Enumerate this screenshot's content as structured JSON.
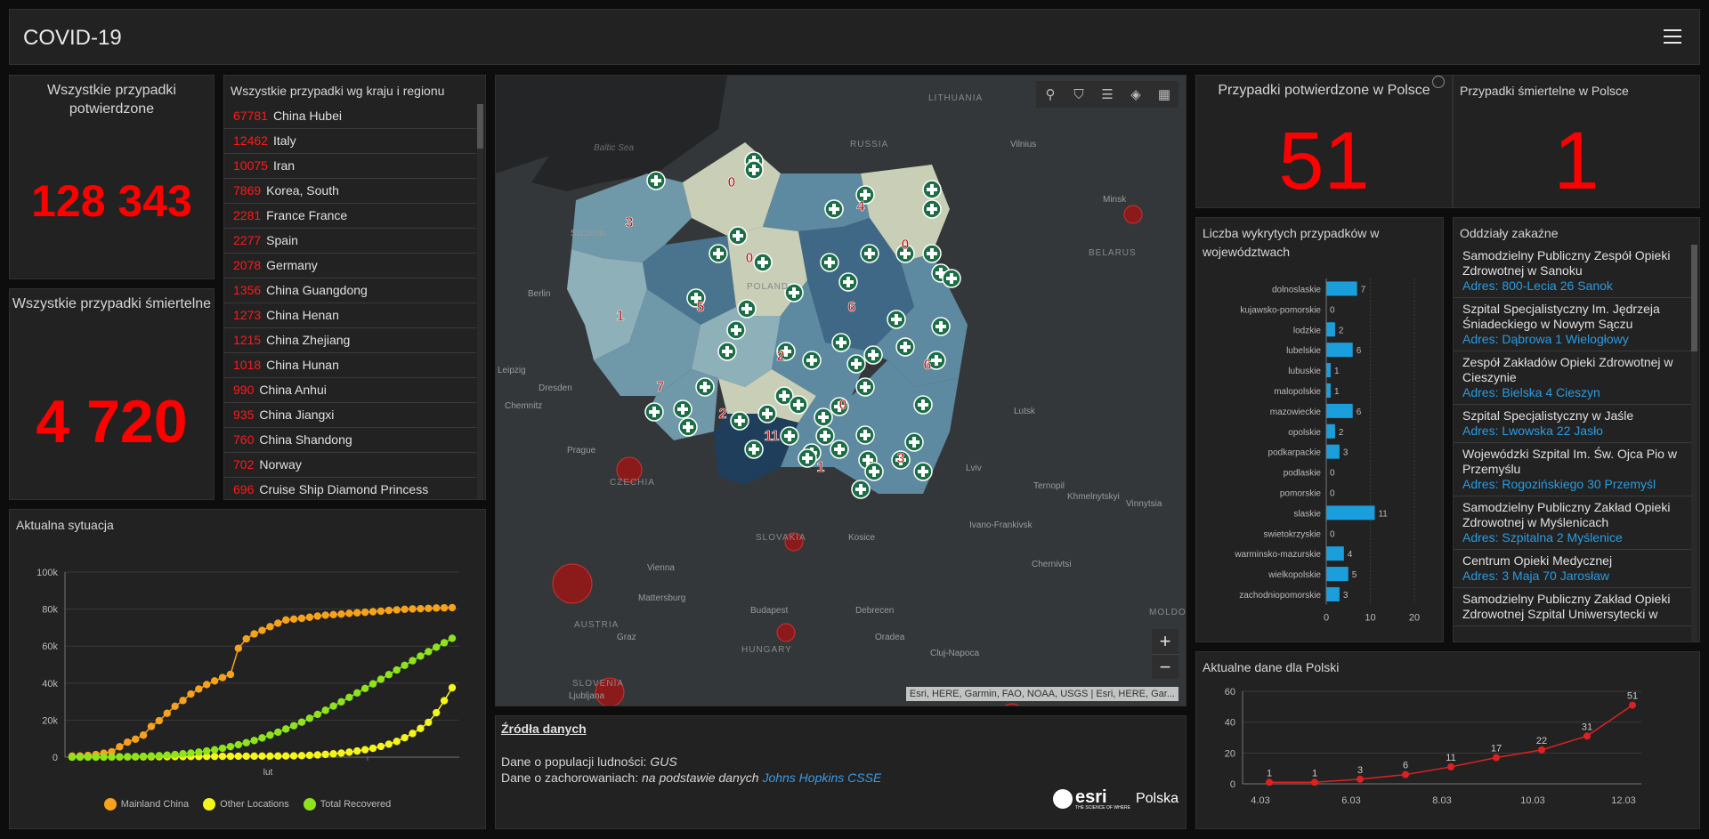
{
  "header": {
    "title": "COVID-19"
  },
  "confirmed": {
    "title": "Wszystkie przypadki potwierdzone",
    "value": "128 343"
  },
  "deaths": {
    "title": "Wszystkie przypadki śmiertelne",
    "value": "4 720"
  },
  "country_list": {
    "title": "Wszystkie przypadki wg kraju i regionu",
    "rows": [
      {
        "n": "67781",
        "c": "China Hubei"
      },
      {
        "n": "12462",
        "c": "Italy"
      },
      {
        "n": "10075",
        "c": "Iran"
      },
      {
        "n": "7869",
        "c": "Korea, South"
      },
      {
        "n": "2281",
        "c": "France France"
      },
      {
        "n": "2277",
        "c": "Spain"
      },
      {
        "n": "2078",
        "c": "Germany"
      },
      {
        "n": "1356",
        "c": "China Guangdong"
      },
      {
        "n": "1273",
        "c": "China Henan"
      },
      {
        "n": "1215",
        "c": "China Zhejiang"
      },
      {
        "n": "1018",
        "c": "China Hunan"
      },
      {
        "n": "990",
        "c": "China Anhui"
      },
      {
        "n": "935",
        "c": "China Jiangxi"
      },
      {
        "n": "760",
        "c": "China Shandong"
      },
      {
        "n": "702",
        "c": "Norway"
      },
      {
        "n": "696",
        "c": "Cruise Ship Diamond Princess"
      }
    ]
  },
  "map": {
    "labels": {
      "lithuania": "LITHUANIA",
      "russia": "RUSSIA",
      "vilnius": "Vilnius",
      "minsk": "Minsk",
      "belarus": "BELARUS",
      "baltic": "Baltic Sea",
      "berlin": "Berlin",
      "dresden": "Dresden",
      "chemnitz": "Chemnitz",
      "prague": "Prague",
      "czechia": "CZECHIA",
      "poland": "POLAND",
      "lutsk": "Lutsk",
      "lviv": "Lviv",
      "ternopil": "Ternopil",
      "khmelnytskyi": "Khmelnytskyi",
      "vinnytsia": "Vinnytsia",
      "ivano": "Ivano-Frankivsk",
      "chernivtsi": "Chernivtsi",
      "slovakia": "SLOVAKIA",
      "kosice": "Kosice",
      "vienna": "Vienna",
      "mattersburg": "Mattersburg",
      "austria": "AUSTRIA",
      "graz": "Graz",
      "budapest": "Budapest",
      "debrecen": "Debrecen",
      "oradea": "Oradea",
      "hungary": "HUNGARY",
      "cluj": "Cluj-Napoca",
      "moldova": "MOLDOVA",
      "slovenia": "SLOVENIA",
      "ljubljana": "Ljubljana",
      "leipzig": "Leipzig",
      "szczecin": "Szczecin"
    },
    "region_counts": [
      "3",
      "0",
      "4",
      "0",
      "0",
      "1",
      "5",
      "6",
      "2",
      "6",
      "7",
      "2",
      "0",
      "11",
      "1",
      "3"
    ],
    "attribution": "Esri, HERE, Garmin, FAO, NOAA, USGS | Esri, HERE, Gar...",
    "zoom_in": "+",
    "zoom_out": "−"
  },
  "sources": {
    "title": "Źródła danych",
    "pop_label": "Dane o populacji ludności: ",
    "pop_value": "GUS",
    "cases_label": "Dane o zachorowaniach: ",
    "cases_prefix": "na podstawie danych ",
    "cases_link": "Johns Hopkins CSSE",
    "logo_word": "esri",
    "logo_sub": "THE SCIENCE OF WHERE",
    "logo_pl": "Polska"
  },
  "pl_confirmed": {
    "title": "Przypadki potwierdzone w Polsce",
    "value": "51"
  },
  "pl_deaths": {
    "title": "Przypadki śmiertelne w Polsce",
    "value": "1"
  },
  "voivodeship": {
    "title": "Liczba wykrytych przypadków w województwach",
    "chart_data": {
      "type": "bar",
      "orientation": "horizontal",
      "categories": [
        "dolnoslaskie",
        "kujawsko-pomorskie",
        "lodzkie",
        "lubelskie",
        "lubuskie",
        "malopolskie",
        "mazowieckie",
        "opolskie",
        "podkarpackie",
        "podlaskie",
        "pomorskie",
        "slaskie",
        "swietokrzyskie",
        "warminsko-mazurskie",
        "wielkopolskie",
        "zachodniopomorskie"
      ],
      "values": [
        7,
        0,
        2,
        6,
        1,
        1,
        6,
        2,
        3,
        0,
        0,
        11,
        0,
        4,
        5,
        3
      ],
      "xlim": [
        0,
        20
      ],
      "xticks": [
        "0",
        "10",
        "20"
      ],
      "color": "#1a9fdc"
    }
  },
  "hospitals": {
    "title": "Oddziały zakaźne",
    "items": [
      {
        "name": "Samodzielny Publiczny Zespół Opieki Zdrowotnej w Sanoku",
        "addr": "Adres: 800-Lecia 26 Sanok"
      },
      {
        "name": "Szpital Specjalistyczny Im. Jędrzeja Śniadeckiego w Nowym Sączu",
        "addr": "Adres: Dąbrowa 1 Wielogłowy"
      },
      {
        "name": "Zespół Zakładów Opieki Zdrowotnej w Cieszynie",
        "addr": "Adres: Bielska 4 Cieszyn"
      },
      {
        "name": "Szpital Specjalistyczny w Jaśle",
        "addr": "Adres: Lwowska 22 Jasło"
      },
      {
        "name": "Wojewódzki Szpital Im. Św. Ojca Pio w Przemyślu",
        "addr": "Adres: Rogozińskiego 30 Przemyśl"
      },
      {
        "name": "Samodzielny Publiczny Zakład Opieki Zdrowotnej w Myślenicach",
        "addr": "Adres: Szpitalna 2 Myślenice"
      },
      {
        "name": "Centrum Opieki Medycznej",
        "addr": "Adres: 3 Maja 70 Jarosław"
      },
      {
        "name": "Samodzielny Publiczny Zakład Opieki Zdrowotnej Szpital Uniwersytecki w",
        "addr": ""
      }
    ]
  },
  "situation": {
    "title": "Aktualna sytuacja",
    "chart_data": {
      "type": "line",
      "yticks": [
        "0",
        "20k",
        "40k",
        "60k",
        "80k",
        "100k"
      ],
      "ylim": [
        0,
        100000
      ],
      "xtick_label": "lut",
      "series": [
        {
          "name": "Mainland China",
          "color": "#f7a21b",
          "values": [
            550,
            640,
            920,
            1400,
            2100,
            2900,
            5600,
            8100,
            9700,
            11900,
            16600,
            19700,
            23700,
            27500,
            30600,
            34100,
            36800,
            39200,
            41200,
            43000,
            44700,
            58800,
            63900,
            66600,
            68500,
            70500,
            72400,
            74100,
            74600,
            75000,
            75600,
            76200,
            76700,
            77000,
            77300,
            77700,
            78000,
            78300,
            78600,
            78900,
            79300,
            79600,
            79900,
            80100,
            80200,
            80400,
            80600,
            80700,
            80800
          ]
        },
        {
          "name": "Other Locations",
          "color": "#f5f51b",
          "values": [
            10,
            20,
            30,
            50,
            70,
            90,
            110,
            130,
            150,
            170,
            190,
            210,
            230,
            260,
            290,
            320,
            350,
            380,
            410,
            440,
            470,
            500,
            520,
            540,
            560,
            580,
            600,
            630,
            700,
            800,
            1000,
            1200,
            1500,
            1800,
            2200,
            2700,
            3300,
            4000,
            4800,
            5800,
            7000,
            8500,
            10500,
            12800,
            15500,
            18800,
            24000,
            30500,
            37500
          ]
        },
        {
          "name": "Total Recovered",
          "color": "#8ee31b",
          "values": [
            30,
            40,
            50,
            60,
            100,
            130,
            180,
            250,
            350,
            470,
            600,
            800,
            1100,
            1400,
            1800,
            2200,
            2700,
            3300,
            4000,
            4800,
            5700,
            6700,
            7800,
            9000,
            10400,
            11900,
            13500,
            15200,
            17000,
            18900,
            21000,
            23100,
            25300,
            27600,
            29900,
            32300,
            34700,
            37100,
            39600,
            42100,
            44600,
            47100,
            49600,
            52100,
            54600,
            57000,
            59400,
            61800,
            64200
          ]
        }
      ]
    }
  },
  "poland_now": {
    "title": "Aktualne dane dla Polski",
    "chart_data": {
      "type": "line",
      "x": [
        "4.03",
        "5.03",
        "6.03",
        "7.03",
        "8.03",
        "9.03",
        "10.03",
        "11.03",
        "12.03"
      ],
      "values": [
        1,
        1,
        3,
        6,
        11,
        17,
        22,
        31,
        51
      ],
      "xticks": [
        "4.03",
        "6.03",
        "8.03",
        "10.03",
        "12.03"
      ],
      "yticks": [
        "0",
        "20",
        "40",
        "60"
      ],
      "ylim": [
        0,
        60
      ],
      "color": "#e02020"
    }
  }
}
